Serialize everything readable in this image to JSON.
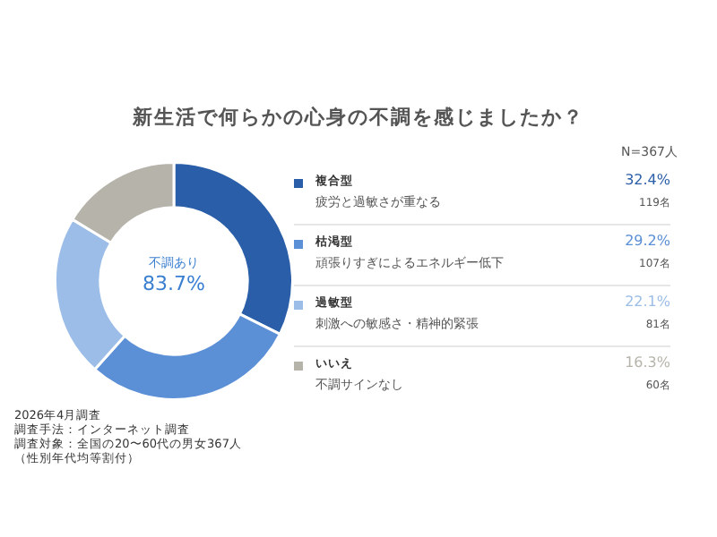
{
  "chart_data": {
    "type": "donut",
    "title": "新生活で何らかの心身の不調を感じましたか？",
    "categories": [
      "複合型",
      "枯渇型",
      "過敏型",
      "いいえ"
    ],
    "values": [
      32.4,
      29.2,
      22.1,
      16.3
    ],
    "colors": [
      "#2a5ea8",
      "#5b8fd6",
      "#9bbde8",
      "#b6b3aa"
    ],
    "value_labels": [
      "32.4%",
      "29.2%",
      "22.1%",
      "16.3%"
    ],
    "legend": "right",
    "annotations": [
      "N=367人",
      "不調あり",
      "83.7%",
      "2026年4月調査",
      "調査手法：インターネット調査",
      "調査対象：全国の20〜60代の男女367人",
      "（性別年代均等割付）",
      {
        "text": "疲労と過敏さが重なる",
        "x": "複合型"
      },
      {
        "text": "119名",
        "x": "複合型"
      },
      {
        "text": "頑張りすぎによるエネルギー低下",
        "x": "枯渇型"
      },
      {
        "text": "107名",
        "x": "枯渇型"
      },
      {
        "text": "刺激への敏感さ・精神的緊張",
        "x": "過敏型"
      },
      {
        "text": "81名",
        "x": "過敏型"
      },
      {
        "text": "不調サインなし",
        "x": "いいえ"
      },
      {
        "text": "60名",
        "x": "いいえ"
      }
    ]
  }
}
